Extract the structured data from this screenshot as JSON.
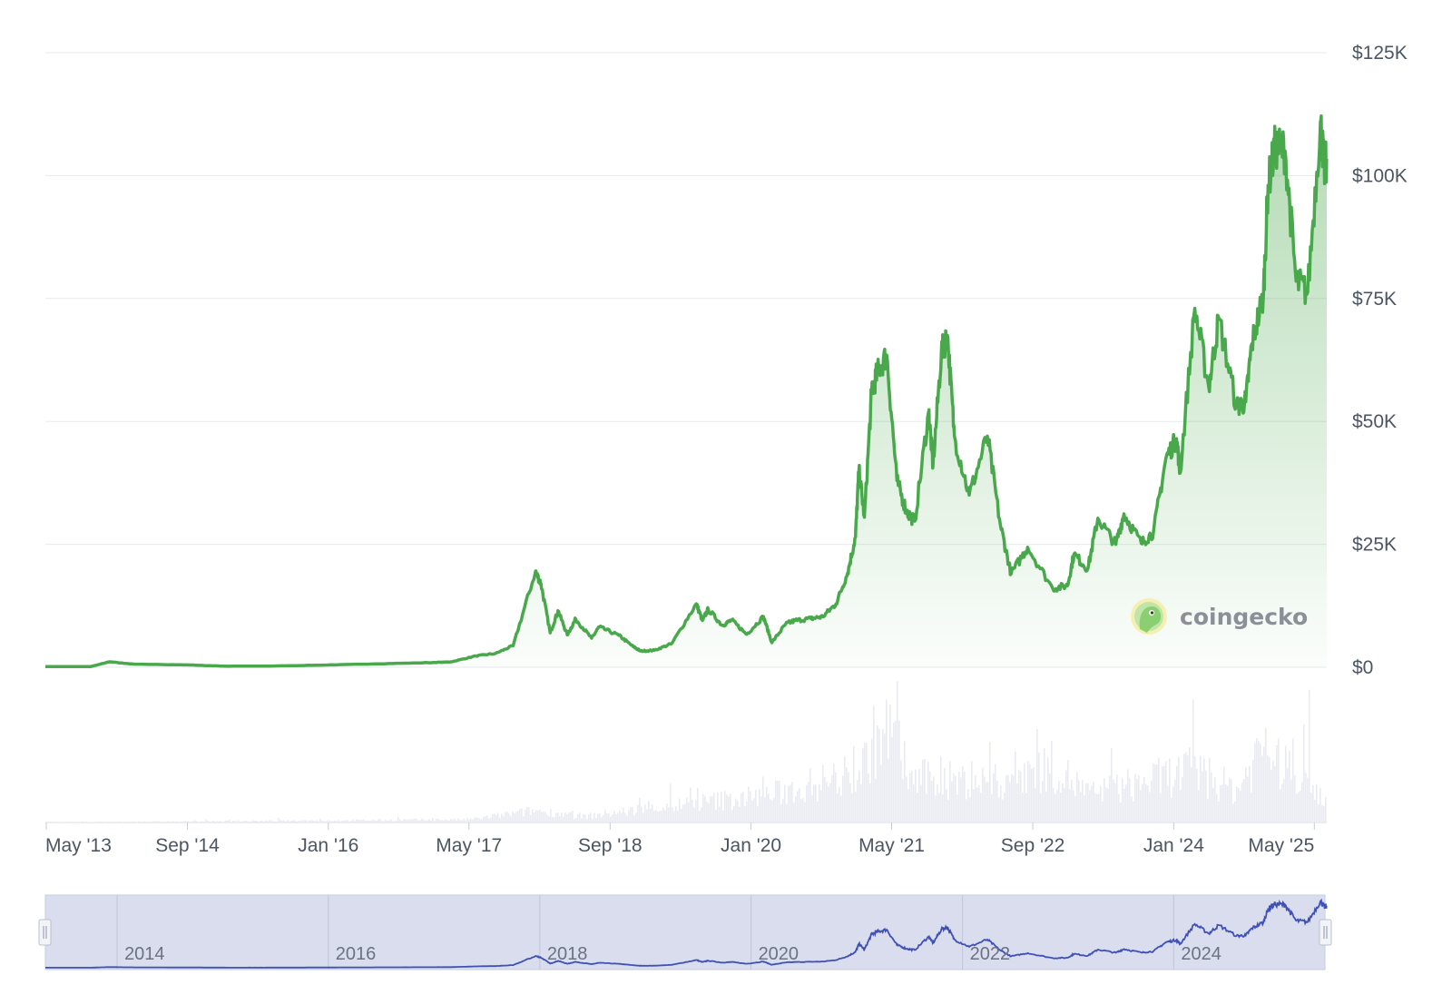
{
  "brand": {
    "name": "coingecko",
    "icon": "gecko-logo-icon"
  },
  "colors": {
    "price_line": "#4aa84c",
    "price_fill": "#4aa84c",
    "volume": "#e9ebf1",
    "grid": "#e8eaed",
    "navigator_fill": "#d9ddee",
    "navigator_line": "#3f51b5"
  },
  "chart_data": {
    "type": "line",
    "title": "",
    "xlabel": "",
    "ylabel": "",
    "ylim": [
      0,
      125000
    ],
    "y_ticks": [
      "$0",
      "$25K",
      "$50K",
      "$75K",
      "$100K",
      "$125K"
    ],
    "y_tick_values": [
      0,
      25000,
      50000,
      75000,
      100000,
      125000
    ],
    "x_ticks": [
      "May '13",
      "Sep '14",
      "Jan '16",
      "May '17",
      "Sep '18",
      "Jan '20",
      "May '21",
      "Sep '22",
      "Jan '24",
      "May '25"
    ],
    "x_tick_dates": [
      "2013-05-01",
      "2014-09-01",
      "2016-01-01",
      "2017-05-01",
      "2018-09-01",
      "2020-01-01",
      "2021-05-01",
      "2022-09-01",
      "2024-01-01",
      "2025-05-01"
    ],
    "grid": true,
    "legend": "none",
    "series": [
      {
        "values_kind": "price_usd",
        "x": [
          "2013-04-28",
          "2013-10-01",
          "2013-12-05",
          "2014-03-01",
          "2014-09-01",
          "2015-01-15",
          "2015-06-01",
          "2015-12-01",
          "2016-06-15",
          "2016-12-31",
          "2017-03-01",
          "2017-05-25",
          "2017-08-01",
          "2017-10-01",
          "2017-12-17",
          "2018-01-05",
          "2018-02-06",
          "2018-03-05",
          "2018-04-06",
          "2018-05-05",
          "2018-06-29",
          "2018-07-25",
          "2018-10-01",
          "2018-11-20",
          "2018-12-15",
          "2019-02-01",
          "2019-04-02",
          "2019-06-26",
          "2019-07-17",
          "2019-08-06",
          "2019-09-24",
          "2019-10-26",
          "2019-12-17",
          "2020-02-13",
          "2020-03-13",
          "2020-04-30",
          "2020-06-01",
          "2020-07-26",
          "2020-09-05",
          "2020-10-21",
          "2020-11-30",
          "2020-12-27",
          "2021-01-08",
          "2021-01-27",
          "2021-02-21",
          "2021-03-13",
          "2021-04-14",
          "2021-05-19",
          "2021-06-22",
          "2021-07-20",
          "2021-09-06",
          "2021-09-21",
          "2021-10-20",
          "2021-11-10",
          "2021-12-04",
          "2022-01-24",
          "2022-03-28",
          "2022-05-12",
          "2022-06-18",
          "2022-08-14",
          "2022-11-09",
          "2022-12-30",
          "2023-01-21",
          "2023-03-10",
          "2023-04-14",
          "2023-06-15",
          "2023-07-13",
          "2023-09-11",
          "2023-10-23",
          "2023-12-05",
          "2024-01-11",
          "2024-01-23",
          "2024-03-14",
          "2024-05-01",
          "2024-06-05",
          "2024-08-05",
          "2024-09-06",
          "2024-09-27",
          "2024-11-06",
          "2024-11-22",
          "2024-12-17",
          "2025-01-20",
          "2025-02-27",
          "2025-04-08",
          "2025-05-22",
          "2025-06-05",
          "2025-06-13"
        ],
        "values": [
          135,
          130,
          1100,
          630,
          480,
          210,
          230,
          430,
          690,
          960,
          1100,
          2300,
          2800,
          4400,
          19500,
          17000,
          7000,
          11500,
          6600,
          9800,
          5900,
          8200,
          6500,
          4200,
          3300,
          3450,
          4800,
          12900,
          9500,
          11800,
          8500,
          9600,
          6700,
          10300,
          5000,
          8800,
          9500,
          9900,
          10300,
          12900,
          19200,
          26500,
          40000,
          30500,
          56000,
          60000,
          63500,
          38000,
          31600,
          29700,
          52000,
          41000,
          64000,
          67500,
          47000,
          35000,
          47000,
          28900,
          19000,
          24400,
          16000,
          16600,
          23000,
          20000,
          30300,
          25000,
          31200,
          25200,
          27500,
          42500,
          46500,
          39500,
          73000,
          57000,
          71000,
          53000,
          54000,
          65800,
          75600,
          98000,
          106000,
          105000,
          78500,
          76300,
          111000,
          101000,
          103500
        ]
      }
    ],
    "volume": {
      "x": [
        "2013-04-28",
        "2017-05-01",
        "2017-12-15",
        "2018-06-01",
        "2019-05-15",
        "2020-03-12",
        "2021-01-11",
        "2021-02-23",
        "2021-05-19",
        "2021-06-22",
        "2022-05-12",
        "2022-06-13",
        "2022-11-09",
        "2023-03-13",
        "2024-03-05",
        "2024-08-05",
        "2024-11-12",
        "2024-12-05",
        "2025-04-07",
        "2025-06-13"
      ],
      "values": [
        0.1,
        1.5,
        6,
        3,
        9,
        14,
        25,
        40,
        48,
        22,
        20,
        24,
        28,
        14,
        26,
        16,
        42,
        30,
        24,
        10
      ],
      "unit": "relative"
    },
    "navigator": {
      "labels": [
        "2014",
        "2016",
        "2018",
        "2020",
        "2022",
        "2024"
      ],
      "label_dates": [
        "2014-01-01",
        "2016-01-01",
        "2018-01-01",
        "2020-01-01",
        "2022-01-01",
        "2024-01-01"
      ]
    }
  }
}
